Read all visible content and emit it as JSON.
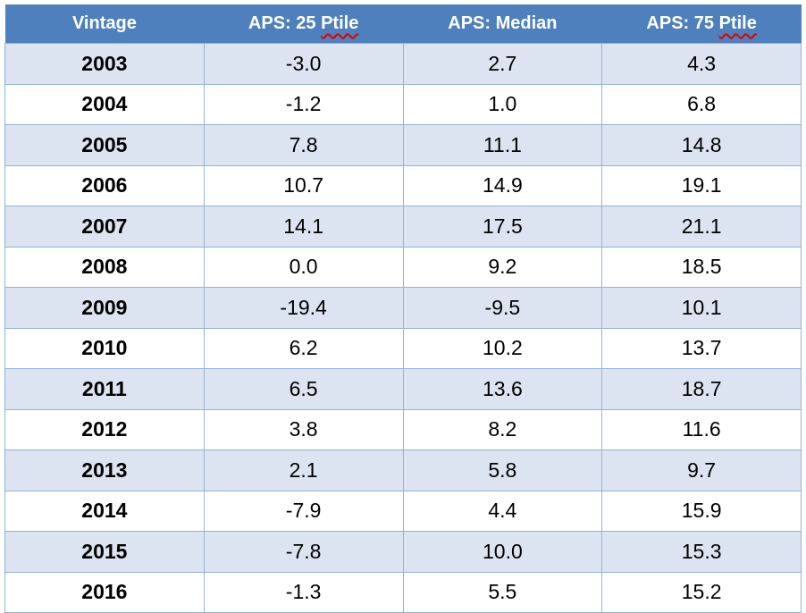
{
  "table": {
    "header": {
      "cells": [
        {
          "text": "Vintage",
          "misspelled": ""
        },
        {
          "text": "APS: 25 ",
          "misspelled": "Ptile"
        },
        {
          "text": "APS: Median",
          "misspelled": ""
        },
        {
          "text": "APS: 75 ",
          "misspelled": "Ptile"
        }
      ]
    },
    "rows": [
      [
        "2003",
        "-3.0",
        "2.7",
        "4.3"
      ],
      [
        "2004",
        "-1.2",
        "1.0",
        "6.8"
      ],
      [
        "2005",
        "7.8",
        "11.1",
        "14.8"
      ],
      [
        "2006",
        "10.7",
        "14.9",
        "19.1"
      ],
      [
        "2007",
        "14.1",
        "17.5",
        "21.1"
      ],
      [
        "2008",
        "0.0",
        "9.2",
        "18.5"
      ],
      [
        "2009",
        "-19.4",
        "-9.5",
        "10.1"
      ],
      [
        "2010",
        "6.2",
        "10.2",
        "13.7"
      ],
      [
        "2011",
        "6.5",
        "13.6",
        "18.7"
      ],
      [
        "2012",
        "3.8",
        "8.2",
        "11.6"
      ],
      [
        "2013",
        "2.1",
        "5.8",
        "9.7"
      ],
      [
        "2014",
        "-7.9",
        "4.4",
        "15.9"
      ],
      [
        "2015",
        "-7.8",
        "10.0",
        "15.3"
      ],
      [
        "2016",
        "-1.3",
        "5.5",
        "15.2"
      ]
    ]
  },
  "colors": {
    "header_bg": "#4E80BD",
    "header_text": "#FFFFFF",
    "row_bg": "#FFFFFF",
    "row_alt_bg": "#DBE4F0",
    "grid_border": "#95B3D7",
    "body_text": "#000000",
    "spellcheck_squiggle": "#E00000"
  }
}
